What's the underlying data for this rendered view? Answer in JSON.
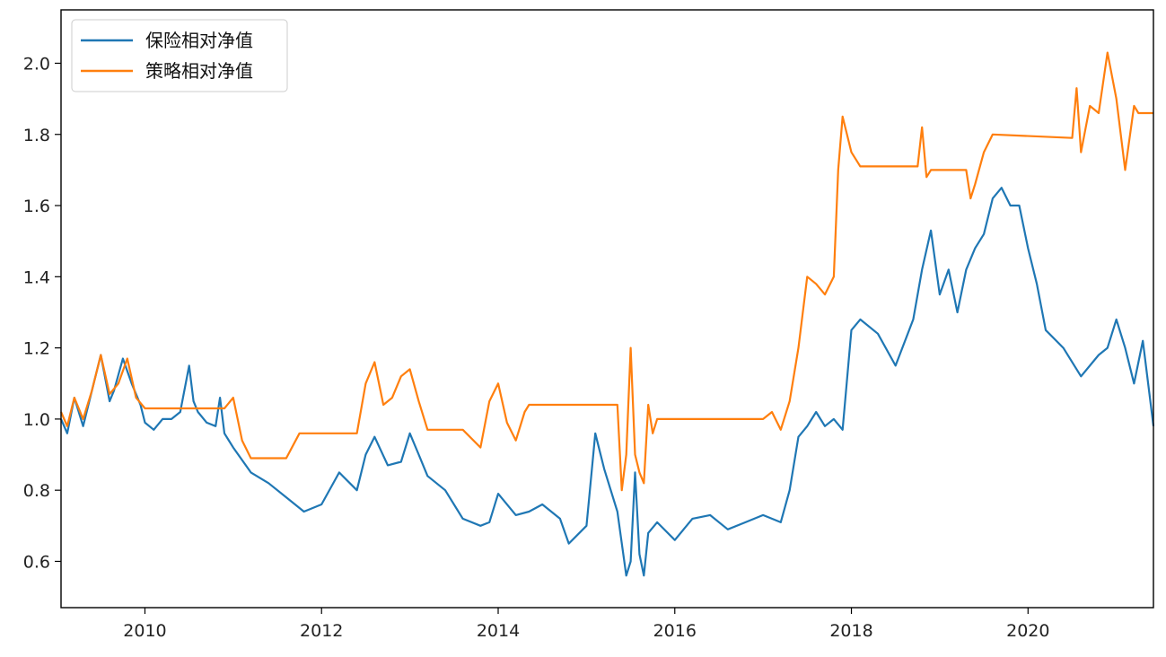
{
  "chart_data": {
    "type": "line",
    "title": "",
    "xlabel": "",
    "ylabel": "",
    "xlim": [
      2009.05,
      2021.42
    ],
    "ylim": [
      0.47,
      2.15
    ],
    "x_ticks": [
      2010,
      2012,
      2014,
      2016,
      2018,
      2020
    ],
    "x_tick_labels": [
      "2010",
      "2012",
      "2014",
      "2016",
      "2018",
      "2020"
    ],
    "y_ticks": [
      0.6,
      0.8,
      1.0,
      1.2,
      1.4,
      1.6,
      1.8,
      2.0
    ],
    "y_tick_labels": [
      "0.6",
      "0.8",
      "1.0",
      "1.2",
      "1.4",
      "1.6",
      "1.8",
      "2.0"
    ],
    "grid": false,
    "legend_position": "top-left",
    "series": [
      {
        "name": "保险相对净值",
        "color": "#1f77b4",
        "x": [
          2009.05,
          2009.12,
          2009.2,
          2009.3,
          2009.4,
          2009.5,
          2009.6,
          2009.65,
          2009.75,
          2009.85,
          2009.95,
          2010.0,
          2010.1,
          2010.2,
          2010.3,
          2010.4,
          2010.5,
          2010.55,
          2010.6,
          2010.7,
          2010.8,
          2010.85,
          2010.9,
          2011.0,
          2011.2,
          2011.4,
          2011.6,
          2011.8,
          2012.0,
          2012.2,
          2012.4,
          2012.5,
          2012.6,
          2012.75,
          2012.9,
          2013.0,
          2013.1,
          2013.2,
          2013.4,
          2013.6,
          2013.8,
          2013.9,
          2014.0,
          2014.2,
          2014.35,
          2014.5,
          2014.7,
          2014.8,
          2015.0,
          2015.1,
          2015.2,
          2015.35,
          2015.45,
          2015.5,
          2015.55,
          2015.6,
          2015.65,
          2015.7,
          2015.8,
          2016.0,
          2016.2,
          2016.4,
          2016.6,
          2016.8,
          2017.0,
          2017.2,
          2017.3,
          2017.4,
          2017.5,
          2017.6,
          2017.7,
          2017.8,
          2017.9,
          2018.0,
          2018.1,
          2018.3,
          2018.5,
          2018.7,
          2018.8,
          2018.9,
          2019.0,
          2019.1,
          2019.2,
          2019.3,
          2019.4,
          2019.5,
          2019.6,
          2019.7,
          2019.8,
          2019.9,
          2020.0,
          2020.1,
          2020.2,
          2020.4,
          2020.6,
          2020.8,
          2020.9,
          2021.0,
          2021.1,
          2021.2,
          2021.3,
          2021.42
        ],
        "y": [
          1.0,
          0.96,
          1.06,
          0.98,
          1.08,
          1.18,
          1.05,
          1.08,
          1.17,
          1.1,
          1.04,
          0.99,
          0.97,
          1.0,
          1.0,
          1.02,
          1.15,
          1.05,
          1.02,
          0.99,
          0.98,
          1.06,
          0.96,
          0.92,
          0.85,
          0.82,
          0.78,
          0.74,
          0.76,
          0.85,
          0.8,
          0.9,
          0.95,
          0.87,
          0.88,
          0.96,
          0.9,
          0.84,
          0.8,
          0.72,
          0.7,
          0.71,
          0.79,
          0.73,
          0.74,
          0.76,
          0.72,
          0.65,
          0.7,
          0.96,
          0.86,
          0.74,
          0.56,
          0.6,
          0.85,
          0.62,
          0.56,
          0.68,
          0.71,
          0.66,
          0.72,
          0.73,
          0.69,
          0.71,
          0.73,
          0.71,
          0.8,
          0.95,
          0.98,
          1.02,
          0.98,
          1.0,
          0.97,
          1.25,
          1.28,
          1.24,
          1.15,
          1.28,
          1.42,
          1.53,
          1.35,
          1.42,
          1.3,
          1.42,
          1.48,
          1.52,
          1.62,
          1.65,
          1.6,
          1.6,
          1.48,
          1.38,
          1.25,
          1.2,
          1.12,
          1.18,
          1.2,
          1.28,
          1.2,
          1.1,
          1.22,
          0.98
        ]
      },
      {
        "name": "策略相对净值",
        "color": "#ff7f0e",
        "x": [
          2009.05,
          2009.12,
          2009.2,
          2009.3,
          2009.4,
          2009.5,
          2009.6,
          2009.7,
          2009.8,
          2009.9,
          2010.0,
          2010.9,
          2011.0,
          2011.1,
          2011.2,
          2011.6,
          2011.75,
          2012.4,
          2012.5,
          2012.6,
          2012.7,
          2012.8,
          2012.9,
          2013.0,
          2013.1,
          2013.2,
          2013.3,
          2013.4,
          2013.6,
          2013.8,
          2013.9,
          2014.0,
          2014.1,
          2014.2,
          2014.3,
          2014.35,
          2015.35,
          2015.4,
          2015.45,
          2015.5,
          2015.55,
          2015.6,
          2015.65,
          2015.7,
          2015.75,
          2015.8,
          2017.0,
          2017.1,
          2017.2,
          2017.3,
          2017.4,
          2017.5,
          2017.6,
          2017.7,
          2017.8,
          2017.85,
          2017.9,
          2018.0,
          2018.1,
          2018.2,
          2018.75,
          2018.8,
          2018.85,
          2018.9,
          2019.3,
          2019.35,
          2019.4,
          2019.5,
          2019.6,
          2020.5,
          2020.55,
          2020.6,
          2020.7,
          2020.8,
          2020.9,
          2021.0,
          2021.1,
          2021.2,
          2021.25,
          2021.42
        ],
        "y": [
          1.02,
          0.98,
          1.06,
          1.0,
          1.08,
          1.18,
          1.07,
          1.1,
          1.17,
          1.06,
          1.03,
          1.03,
          1.06,
          0.94,
          0.89,
          0.89,
          0.96,
          0.96,
          1.1,
          1.16,
          1.04,
          1.06,
          1.12,
          1.14,
          1.05,
          0.97,
          0.97,
          0.97,
          0.97,
          0.92,
          1.05,
          1.1,
          0.99,
          0.94,
          1.02,
          1.04,
          1.04,
          0.8,
          0.9,
          1.2,
          0.9,
          0.85,
          0.82,
          1.04,
          0.96,
          1.0,
          1.0,
          1.02,
          0.97,
          1.05,
          1.2,
          1.4,
          1.38,
          1.35,
          1.4,
          1.7,
          1.85,
          1.75,
          1.71,
          1.71,
          1.71,
          1.82,
          1.68,
          1.7,
          1.7,
          1.62,
          1.66,
          1.75,
          1.8,
          1.79,
          1.93,
          1.75,
          1.88,
          1.86,
          2.03,
          1.9,
          1.7,
          1.88,
          1.86,
          1.86
        ]
      }
    ]
  }
}
